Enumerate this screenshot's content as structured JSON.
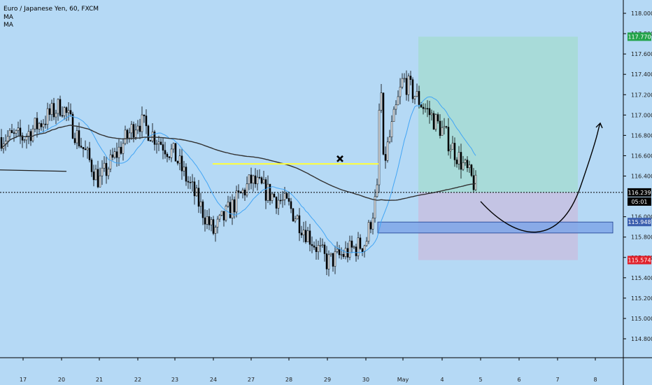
{
  "chart_data": {
    "type": "candlestick",
    "title": "Euro / Japanese Yen, 60, FXCM",
    "indicators": [
      "MA",
      "MA"
    ],
    "x_ticks": [
      "17",
      "20",
      "21",
      "22",
      "23",
      "24",
      "27",
      "28",
      "29",
      "30",
      "May",
      "4",
      "5",
      "6",
      "7",
      "8"
    ],
    "y_ticks": [
      "118.000",
      "117.800",
      "117.600",
      "117.400",
      "117.200",
      "117.000",
      "116.800",
      "116.600",
      "116.400",
      "116.000",
      "115.800",
      "115.600",
      "115.400",
      "115.200",
      "115.000",
      "114.800"
    ],
    "ylim": [
      114.65,
      118.15
    ],
    "price_labels": {
      "take_profit": "117.770",
      "current": "116.239",
      "countdown": "05:01",
      "zone": "115.948",
      "stop_loss": "115.574"
    },
    "levels": {
      "take_profit": 117.77,
      "current": 116.239,
      "zone_top": 115.948,
      "zone_bottom": 115.84,
      "stop_loss": 115.574,
      "yellow_line": 116.52,
      "left_line": 116.46,
      "entry": 116.239
    },
    "anchors": [
      [
        "17",
        116.78
      ],
      [
        "20",
        117.1
      ],
      [
        "21",
        116.35
      ],
      [
        "22",
        116.95
      ],
      [
        "23",
        116.6
      ],
      [
        "24",
        115.85
      ],
      [
        "27",
        116.35
      ],
      [
        "28",
        116.1
      ],
      [
        "29",
        115.55
      ],
      [
        "30",
        115.75
      ],
      [
        "May",
        117.35
      ],
      [
        "4",
        116.85
      ],
      [
        "5",
        116.22
      ]
    ],
    "series": [
      {
        "name": "MA",
        "color": "#42a5f5"
      },
      {
        "name": "MA",
        "color": "#333333"
      }
    ],
    "colors": {
      "background": "#b5d9f5",
      "candle": "#000000",
      "take_profit_zone": "#a8dbd9",
      "stop_zone": "#c4c4e4",
      "demand_zone": "#7fa6e8",
      "yellow_line": "#ffff3b",
      "take_profit_label": "#22a34a",
      "stop_label": "#e0202a"
    }
  }
}
